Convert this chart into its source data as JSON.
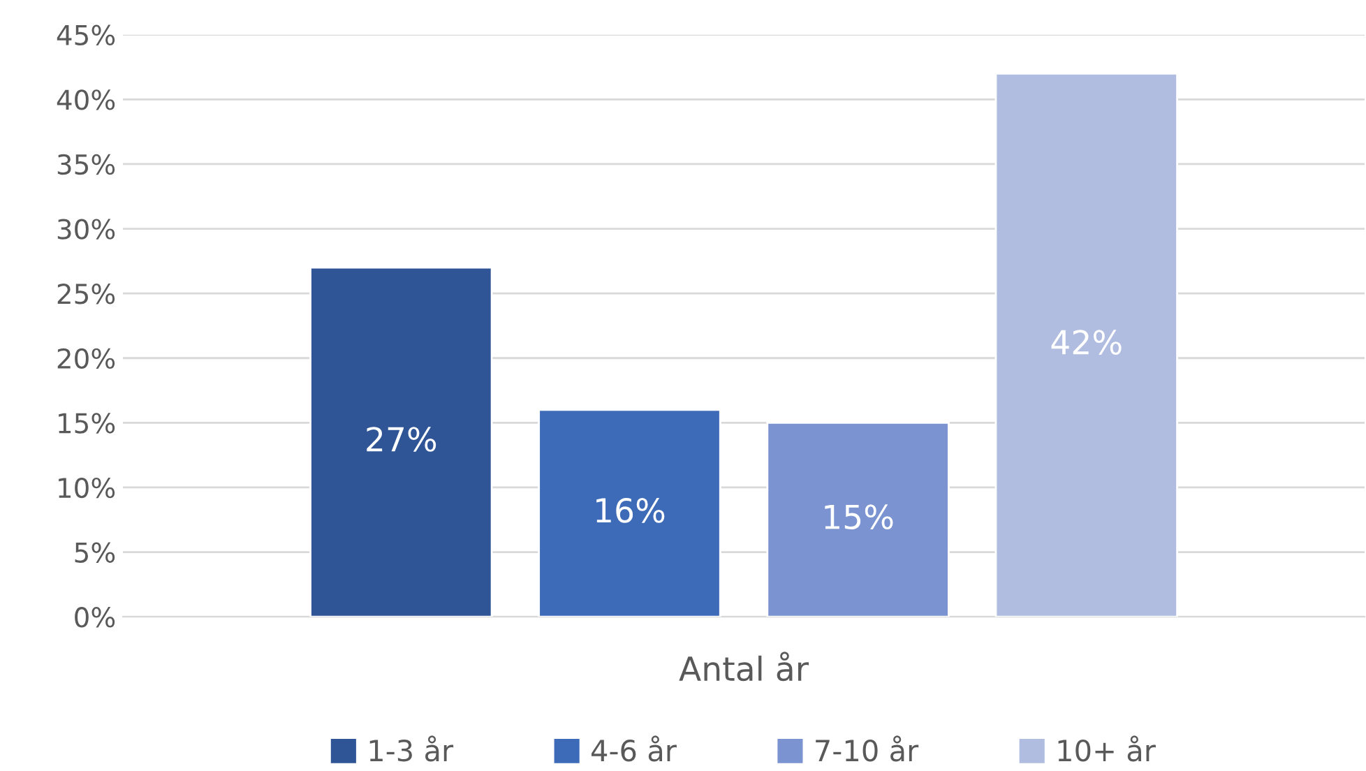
{
  "chart_data": {
    "type": "bar",
    "categories": [
      "Antal år"
    ],
    "series": [
      {
        "name": "1-3 år",
        "color": "#2f5597",
        "values": [
          27
        ],
        "value_labels": [
          "27%"
        ]
      },
      {
        "name": "4-6 år",
        "color": "#3e6bb8",
        "values": [
          16
        ],
        "value_labels": [
          "16%"
        ]
      },
      {
        "name": "7-10 år",
        "color": "#7b94d1",
        "values": [
          15
        ],
        "value_labels": [
          "15%"
        ]
      },
      {
        "name": "10+ år",
        "color": "#b1bde0",
        "values": [
          42
        ],
        "value_labels": [
          "42%"
        ]
      }
    ],
    "ylim": [
      0,
      45
    ],
    "yticks": [
      {
        "value": 0,
        "label": "0%"
      },
      {
        "value": 5,
        "label": "5%"
      },
      {
        "value": 10,
        "label": "10%"
      },
      {
        "value": 15,
        "label": "15%"
      },
      {
        "value": 20,
        "label": "20%"
      },
      {
        "value": 25,
        "label": "25%"
      },
      {
        "value": 30,
        "label": "30%"
      },
      {
        "value": 35,
        "label": "35%"
      },
      {
        "value": 40,
        "label": "40%"
      },
      {
        "value": 45,
        "label": "45%"
      }
    ],
    "grid": "y",
    "legend": "bottom"
  }
}
